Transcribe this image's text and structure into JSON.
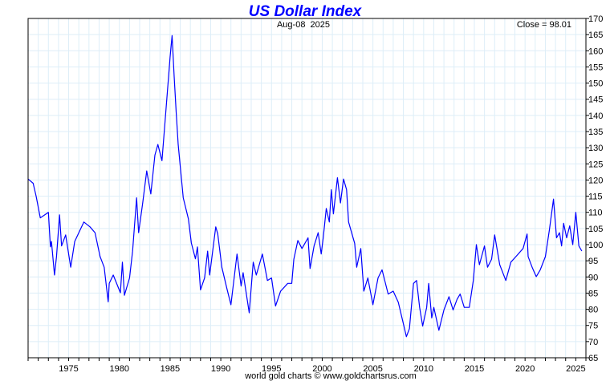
{
  "chart_data": {
    "type": "line",
    "title": "US Dollar Index",
    "subtitle": "Aug-08  2025",
    "annotation": "Close = 98.01",
    "footer": "world gold charts © www.goldchartsrus.com",
    "xlabel": "",
    "ylabel": "",
    "xlim": [
      1971.0,
      2026.0
    ],
    "ylim": [
      65,
      170
    ],
    "x_ticks": [
      1975,
      1980,
      1985,
      1990,
      1995,
      2000,
      2005,
      2010,
      2015,
      2020,
      2025
    ],
    "y_ticks": [
      65,
      70,
      75,
      80,
      85,
      90,
      95,
      100,
      105,
      110,
      115,
      120,
      125,
      130,
      135,
      140,
      145,
      150,
      155,
      160,
      165,
      170
    ],
    "grid": true,
    "y_axis_side": "right",
    "colors": {
      "line": "#0000ff",
      "title": "#0000ff",
      "grid": "#ddeef8"
    },
    "series": [
      {
        "name": "US Dollar Index",
        "points": [
          [
            1971.0,
            120.3
          ],
          [
            1971.5,
            119
          ],
          [
            1971.8,
            114.9
          ],
          [
            1972.2,
            108.3
          ],
          [
            1973.0,
            110
          ],
          [
            1973.2,
            99.3
          ],
          [
            1973.3,
            101
          ],
          [
            1973.6,
            90.6
          ],
          [
            1973.8,
            96.3
          ],
          [
            1974.1,
            109.2
          ],
          [
            1974.3,
            99.6
          ],
          [
            1974.7,
            103
          ],
          [
            1975.2,
            93
          ],
          [
            1975.6,
            101
          ],
          [
            1976.0,
            103.7
          ],
          [
            1976.5,
            107
          ],
          [
            1977.1,
            105.5
          ],
          [
            1977.6,
            103.7
          ],
          [
            1978.1,
            96.3
          ],
          [
            1978.5,
            93
          ],
          [
            1978.9,
            82.3
          ],
          [
            1979.0,
            88
          ],
          [
            1979.4,
            90.6
          ],
          [
            1980.1,
            85.1
          ],
          [
            1980.3,
            94.6
          ],
          [
            1980.5,
            84.3
          ],
          [
            1981.0,
            89.7
          ],
          [
            1981.3,
            98
          ],
          [
            1981.7,
            114.5
          ],
          [
            1981.9,
            103.7
          ],
          [
            1982.3,
            112.9
          ],
          [
            1982.7,
            122.8
          ],
          [
            1983.1,
            115.7
          ],
          [
            1983.5,
            127.7
          ],
          [
            1983.8,
            131
          ],
          [
            1984.2,
            126
          ],
          [
            1984.5,
            138
          ],
          [
            1984.8,
            150
          ],
          [
            1985.0,
            158
          ],
          [
            1985.2,
            164.7
          ],
          [
            1985.4,
            152
          ],
          [
            1985.6,
            141
          ],
          [
            1985.8,
            131
          ],
          [
            1986.3,
            114.5
          ],
          [
            1986.8,
            108
          ],
          [
            1987.1,
            100.5
          ],
          [
            1987.5,
            95.6
          ],
          [
            1987.7,
            99.3
          ],
          [
            1988.0,
            86
          ],
          [
            1988.4,
            89.7
          ],
          [
            1988.7,
            98
          ],
          [
            1988.9,
            90.6
          ],
          [
            1989.5,
            105.5
          ],
          [
            1989.7,
            103.3
          ],
          [
            1990.1,
            93
          ],
          [
            1990.6,
            86.4
          ],
          [
            1991.0,
            81.4
          ],
          [
            1991.6,
            97.1
          ],
          [
            1992.0,
            87.2
          ],
          [
            1992.2,
            91.3
          ],
          [
            1992.8,
            78.9
          ],
          [
            1993.2,
            94.6
          ],
          [
            1993.5,
            90.6
          ],
          [
            1994.1,
            97.1
          ],
          [
            1994.6,
            88.9
          ],
          [
            1995.0,
            89.7
          ],
          [
            1995.4,
            81
          ],
          [
            1995.9,
            85.6
          ],
          [
            1996.6,
            88
          ],
          [
            1997.0,
            88
          ],
          [
            1997.2,
            95.5
          ],
          [
            1997.6,
            101.3
          ],
          [
            1998.0,
            98.8
          ],
          [
            1998.6,
            102.1
          ],
          [
            1998.8,
            92.6
          ],
          [
            1999.2,
            99.6
          ],
          [
            1999.6,
            103.7
          ],
          [
            1999.9,
            97.1
          ],
          [
            2000.1,
            102.1
          ],
          [
            2000.4,
            111.2
          ],
          [
            2000.7,
            107
          ],
          [
            2000.9,
            117
          ],
          [
            2001.1,
            109.5
          ],
          [
            2001.5,
            120.7
          ],
          [
            2001.8,
            112.9
          ],
          [
            2002.1,
            120.3
          ],
          [
            2002.4,
            117
          ],
          [
            2002.6,
            107
          ],
          [
            2003.2,
            100.4
          ],
          [
            2003.4,
            93
          ],
          [
            2003.8,
            98.8
          ],
          [
            2004.1,
            85.6
          ],
          [
            2004.5,
            89.7
          ],
          [
            2005.0,
            81.4
          ],
          [
            2005.5,
            89.7
          ],
          [
            2005.9,
            92.2
          ],
          [
            2006.5,
            84.7
          ],
          [
            2007.0,
            85.6
          ],
          [
            2007.5,
            82.2
          ],
          [
            2008.0,
            75.6
          ],
          [
            2008.3,
            71.5
          ],
          [
            2008.6,
            74
          ],
          [
            2009.0,
            88
          ],
          [
            2009.3,
            88.9
          ],
          [
            2009.6,
            80.6
          ],
          [
            2009.9,
            74.8
          ],
          [
            2010.3,
            80.6
          ],
          [
            2010.5,
            88
          ],
          [
            2010.8,
            77.3
          ],
          [
            2011.0,
            80.6
          ],
          [
            2011.5,
            73.5
          ],
          [
            2012.0,
            79.8
          ],
          [
            2012.5,
            83.9
          ],
          [
            2012.9,
            79.8
          ],
          [
            2013.3,
            83.1
          ],
          [
            2013.6,
            84.7
          ],
          [
            2014.0,
            80.6
          ],
          [
            2014.5,
            80.6
          ],
          [
            2014.9,
            88.9
          ],
          [
            2015.2,
            100
          ],
          [
            2015.5,
            93.8
          ],
          [
            2016.0,
            99.6
          ],
          [
            2016.3,
            93
          ],
          [
            2016.7,
            95.5
          ],
          [
            2017.0,
            103
          ],
          [
            2017.5,
            93.8
          ],
          [
            2018.1,
            88.9
          ],
          [
            2018.6,
            94.6
          ],
          [
            2019.1,
            96.3
          ],
          [
            2019.8,
            98.8
          ],
          [
            2020.2,
            103.3
          ],
          [
            2020.3,
            96.3
          ],
          [
            2020.7,
            93
          ],
          [
            2021.1,
            90.1
          ],
          [
            2021.5,
            92.2
          ],
          [
            2022.0,
            96.3
          ],
          [
            2022.4,
            104.6
          ],
          [
            2022.8,
            114.1
          ],
          [
            2023.1,
            102.1
          ],
          [
            2023.4,
            103.7
          ],
          [
            2023.6,
            99.6
          ],
          [
            2023.8,
            106.6
          ],
          [
            2024.1,
            102.1
          ],
          [
            2024.4,
            105.8
          ],
          [
            2024.7,
            100
          ],
          [
            2025.0,
            110
          ],
          [
            2025.3,
            99.6
          ],
          [
            2025.6,
            98.01
          ]
        ]
      }
    ]
  }
}
